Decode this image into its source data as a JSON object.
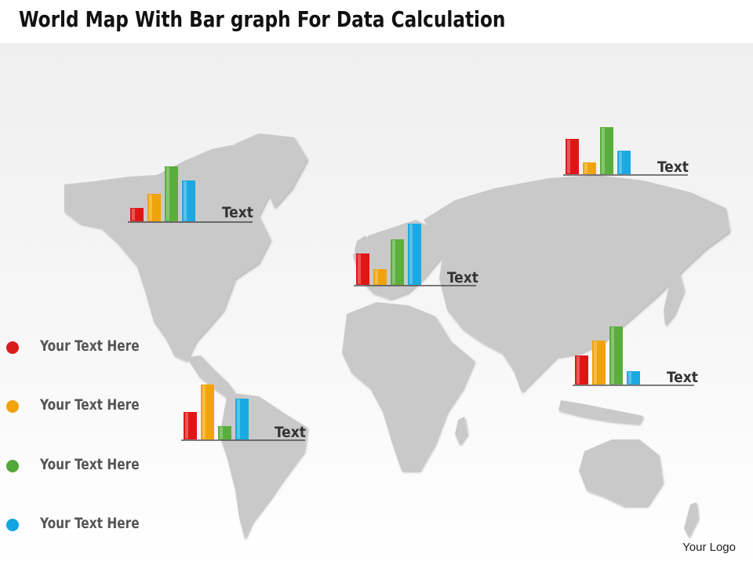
{
  "title": "World Map With Bar graph For Data Calculation",
  "logo": "Your Logo",
  "colors": {
    "red": "#e01616",
    "orange": "#f0a30a",
    "green": "#5aae3c",
    "blue": "#1ba9e1"
  },
  "legend": [
    {
      "text": "Your Text Here",
      "color": "#d91d1d"
    },
    {
      "text": "Your Text Here",
      "color": "#f0a30a"
    },
    {
      "text": "Your Text Here",
      "color": "#54a83a"
    },
    {
      "text": "Your Text Here",
      "color": "#12a4e0"
    }
  ],
  "chart_data": [
    {
      "type": "bar",
      "region": "north-america",
      "label": "Text",
      "values": [
        17,
        35,
        70,
        52
      ]
    },
    {
      "type": "bar",
      "region": "asia",
      "label": "Text",
      "values": [
        45,
        15,
        60,
        30
      ]
    },
    {
      "type": "bar",
      "region": "europe",
      "label": "Text",
      "values": [
        40,
        20,
        58,
        78
      ]
    },
    {
      "type": "bar",
      "region": "south-america",
      "label": "Text",
      "values": [
        35,
        70,
        17,
        52
      ]
    },
    {
      "type": "bar",
      "region": "southeast-asia",
      "label": "Text",
      "values": [
        37,
        56,
        74,
        17
      ]
    }
  ]
}
